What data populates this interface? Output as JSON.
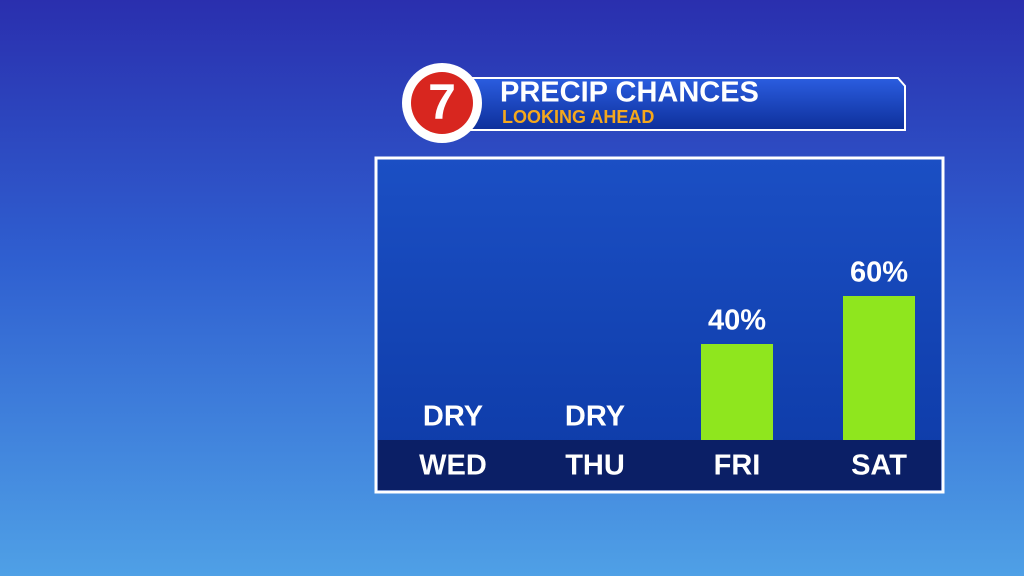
{
  "chart_data": {
    "type": "bar",
    "title": "PRECIP CHANCES",
    "subtitle": "LOOKING AHEAD",
    "logo": "7",
    "categories": [
      "WED",
      "THU",
      "FRI",
      "SAT"
    ],
    "values": [
      0,
      0,
      40,
      60
    ],
    "value_labels": [
      "DRY",
      "DRY",
      "40%",
      "60%"
    ],
    "color": "#8fe61e"
  }
}
